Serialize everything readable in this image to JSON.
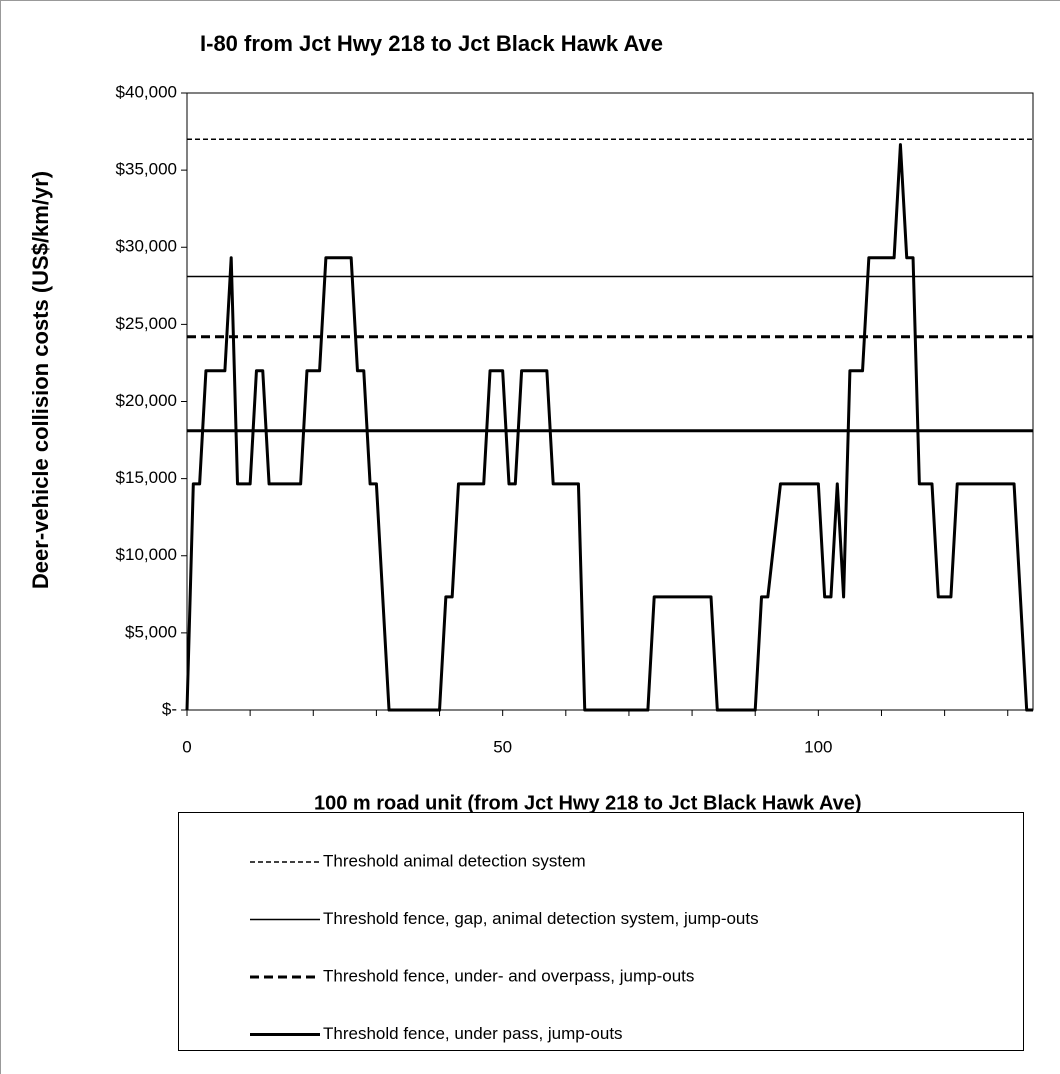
{
  "chart_data": {
    "type": "line",
    "title": "I-80 from Jct Hwy 218 to Jct Black Hawk Ave",
    "y_label": "Deer-vehicle collision costs (US$/km/yr)",
    "x_label": "100 m road unit (from Jct Hwy 218 to Jct Black Hawk Ave)",
    "x": [
      0,
      1,
      2,
      3,
      6,
      7,
      8,
      10,
      11,
      12,
      13,
      18,
      19,
      21,
      22,
      26,
      27,
      28,
      29,
      30,
      32,
      40,
      41,
      42,
      43,
      47,
      48,
      50,
      51,
      52,
      53,
      57,
      58,
      62,
      63,
      73,
      74,
      83,
      84,
      90,
      91,
      92,
      94,
      100,
      101,
      102,
      103,
      104,
      105,
      107,
      108,
      112,
      113,
      114,
      115,
      116,
      118,
      119,
      121,
      122,
      131,
      133,
      134
    ],
    "series": [
      {
        "color": "#000000",
        "values": [
          0,
          14660,
          14660,
          21990,
          21990,
          29320,
          14660,
          14660,
          21990,
          21990,
          14660,
          14660,
          21990,
          21990,
          29320,
          29320,
          21990,
          21990,
          14660,
          14660,
          0,
          0,
          7330,
          7330,
          14660,
          14660,
          21990,
          21990,
          14660,
          14660,
          21990,
          21990,
          14660,
          14660,
          0,
          0,
          7330,
          7330,
          0,
          0,
          7330,
          7330,
          14660,
          14660,
          7330,
          7330,
          14660,
          7330,
          21990,
          21990,
          29320,
          29320,
          36650,
          29320,
          29320,
          14660,
          14660,
          7330,
          7330,
          14660,
          14660,
          0,
          0
        ]
      }
    ],
    "reference_lines": [
      {
        "name": "Threshold animal detection system",
        "value": 37000,
        "dash": "5,3",
        "width": 1.5
      },
      {
        "name": "Threshold fence, gap, animal detection system, jump-outs",
        "value": 28100,
        "dash": "none",
        "width": 1.5
      },
      {
        "name": "Threshold fence, under- and overpass, jump-outs",
        "value": 24200,
        "dash": "9,5",
        "width": 3
      },
      {
        "name": "Threshold fence, under pass, jump-outs",
        "value": 18100,
        "dash": "none",
        "width": 3
      }
    ],
    "xlim": [
      0,
      134
    ],
    "xticks": [
      0,
      50,
      100
    ],
    "xminor_ticks": [
      10,
      20,
      30,
      40,
      60,
      70,
      80,
      90,
      110,
      120,
      130
    ],
    "ylim": [
      0,
      40000
    ],
    "yticks": [
      {
        "value": 0,
        "label": "$-"
      },
      {
        "value": 5000,
        "label": "$5,000"
      },
      {
        "value": 10000,
        "label": "$10,000"
      },
      {
        "value": 15000,
        "label": "$15,000"
      },
      {
        "value": 20000,
        "label": "$20,000"
      },
      {
        "value": 25000,
        "label": "$25,000"
      },
      {
        "value": 30000,
        "label": "$30,000"
      },
      {
        "value": 35000,
        "label": "$35,000"
      },
      {
        "value": 40000,
        "label": "$40,000"
      }
    ]
  }
}
